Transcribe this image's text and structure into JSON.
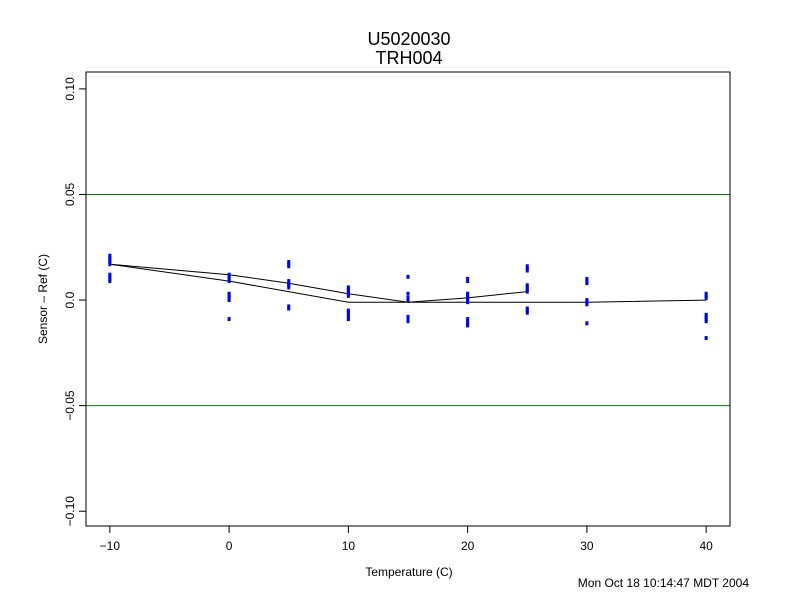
{
  "chart_data": {
    "type": "scatter",
    "title": "U5020030",
    "subtitle": "TRH004",
    "xlabel": "Temperature (C)",
    "ylabel": "Sensor – Ref (C)",
    "xlim": [
      -12,
      42
    ],
    "ylim": [
      -0.107,
      0.108
    ],
    "xticks": [
      -10,
      0,
      10,
      20,
      30,
      40
    ],
    "xtick_labels": [
      "−10",
      "0",
      "10",
      "20",
      "30",
      "40"
    ],
    "yticks": [
      -0.1,
      -0.05,
      0.0,
      0.05,
      0.1
    ],
    "ytick_labels": [
      "−0.10",
      "−0.05",
      "0.0",
      "0.05",
      "0.10"
    ],
    "grid": false,
    "colors": {
      "points": "#0000ff",
      "limits": "#008000",
      "fit": "#000000"
    },
    "limit_lines": [
      0.05,
      -0.05
    ],
    "points": [
      [
        -10,
        0.021
      ],
      [
        -10,
        0.02
      ],
      [
        -10,
        0.019
      ],
      [
        -10,
        0.018
      ],
      [
        -10,
        0.017
      ],
      [
        -10,
        0.012
      ],
      [
        -10,
        0.011
      ],
      [
        -10,
        0.01
      ],
      [
        -10,
        0.009
      ],
      [
        0,
        0.012
      ],
      [
        0,
        0.011
      ],
      [
        0,
        0.01
      ],
      [
        0,
        0.009
      ],
      [
        0,
        0.003
      ],
      [
        0,
        0.002
      ],
      [
        0,
        0.001
      ],
      [
        0,
        0.0
      ],
      [
        0,
        -0.009
      ],
      [
        5,
        0.018
      ],
      [
        5,
        0.017
      ],
      [
        5,
        0.016
      ],
      [
        5,
        0.009
      ],
      [
        5,
        0.008
      ],
      [
        5,
        0.007
      ],
      [
        5,
        0.006
      ],
      [
        5,
        -0.003
      ],
      [
        5,
        -0.004
      ],
      [
        10,
        0.006
      ],
      [
        10,
        0.005
      ],
      [
        10,
        0.004
      ],
      [
        10,
        0.003
      ],
      [
        10,
        0.002
      ],
      [
        10,
        -0.005
      ],
      [
        10,
        -0.006
      ],
      [
        10,
        -0.007
      ],
      [
        10,
        -0.008
      ],
      [
        10,
        -0.009
      ],
      [
        15,
        0.011
      ],
      [
        15,
        0.003
      ],
      [
        15,
        0.001
      ],
      [
        15,
        0.0
      ],
      [
        15,
        -0.008
      ],
      [
        15,
        -0.009
      ],
      [
        15,
        -0.01
      ],
      [
        20,
        0.01
      ],
      [
        20,
        0.009
      ],
      [
        20,
        0.003
      ],
      [
        20,
        0.002
      ],
      [
        20,
        0.001
      ],
      [
        20,
        0.0
      ],
      [
        20,
        -0.001
      ],
      [
        20,
        -0.009
      ],
      [
        20,
        -0.01
      ],
      [
        20,
        -0.011
      ],
      [
        20,
        -0.012
      ],
      [
        25,
        0.016
      ],
      [
        25,
        0.015
      ],
      [
        25,
        0.014
      ],
      [
        25,
        0.007
      ],
      [
        25,
        0.006
      ],
      [
        25,
        0.005
      ],
      [
        25,
        0.004
      ],
      [
        25,
        -0.004
      ],
      [
        25,
        -0.005
      ],
      [
        25,
        -0.006
      ],
      [
        30,
        0.01
      ],
      [
        30,
        0.009
      ],
      [
        30,
        0.008
      ],
      [
        30,
        0.0
      ],
      [
        30,
        -0.001
      ],
      [
        30,
        -0.002
      ],
      [
        30,
        -0.011
      ],
      [
        40,
        0.003
      ],
      [
        40,
        0.002
      ],
      [
        40,
        0.001
      ],
      [
        40,
        -0.007
      ],
      [
        40,
        -0.008
      ],
      [
        40,
        -0.009
      ],
      [
        40,
        -0.01
      ],
      [
        40,
        -0.018
      ]
    ],
    "fit_lines": [
      {
        "x": [
          -10,
          0,
          10,
          15,
          20,
          30,
          40
        ],
        "y": [
          0.017,
          0.009,
          -0.001,
          -0.001,
          -0.001,
          -0.001,
          0.0
        ]
      },
      {
        "x": [
          -10,
          0,
          5,
          10,
          15,
          20,
          25
        ],
        "y": [
          0.017,
          0.012,
          0.008,
          0.003,
          -0.001,
          0.001,
          0.004
        ]
      }
    ]
  },
  "timestamp": "Mon Oct 18 10:14:47 MDT 2004"
}
